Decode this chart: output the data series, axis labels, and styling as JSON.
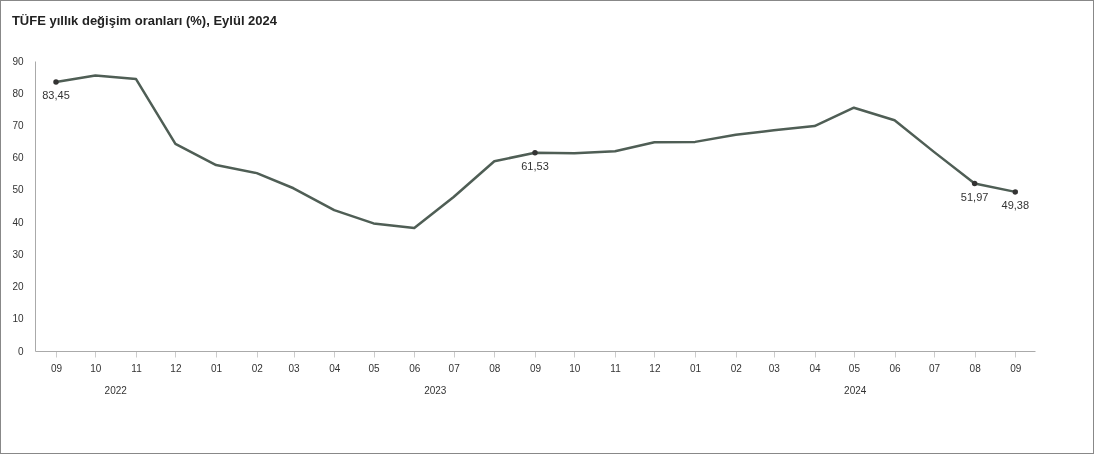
{
  "chart_data": {
    "type": "line",
    "title": "TÜFE yıllık değişim oranları (%), Eylül 2024",
    "x": [
      "2022-09",
      "2022-10",
      "2022-11",
      "2022-12",
      "2023-01",
      "2023-02",
      "2023-03",
      "2023-04",
      "2023-05",
      "2023-06",
      "2023-07",
      "2023-08",
      "2023-09",
      "2023-10",
      "2023-11",
      "2023-12",
      "2024-01",
      "2024-02",
      "2024-03",
      "2024-04",
      "2024-05",
      "2024-06",
      "2024-07",
      "2024-08",
      "2024-09"
    ],
    "series": [
      {
        "color": "#4f5e55",
        "values": [
          83.45,
          85.5,
          84.4,
          64.3,
          57.7,
          55.2,
          50.5,
          43.7,
          39.6,
          38.2,
          47.8,
          58.9,
          61.53,
          61.4,
          62,
          64.8,
          64.9,
          67.1,
          68.5,
          69.8,
          75.5,
          71.6,
          61.8,
          51.97,
          49.38
        ],
        "value_labels": [
          "83,45",
          null,
          null,
          null,
          null,
          null,
          null,
          null,
          null,
          null,
          null,
          null,
          "61,53",
          null,
          null,
          null,
          null,
          null,
          null,
          null,
          null,
          null,
          null,
          "51,97",
          "49,38"
        ]
      }
    ],
    "xlim": [
      "2022-08-16",
      "2024-09-16"
    ],
    "xticks": [
      {
        "value": "2022-09",
        "label": "09"
      },
      {
        "value": "2022-10",
        "label": "10"
      },
      {
        "value": "2022-11",
        "label": "11"
      },
      {
        "value": "2022-12",
        "label": "12"
      },
      {
        "value": "2023-01",
        "label": "01"
      },
      {
        "value": "2023-02",
        "label": "02"
      },
      {
        "value": "2023-03",
        "label": "03"
      },
      {
        "value": "2023-04",
        "label": "04"
      },
      {
        "value": "2023-05",
        "label": "05"
      },
      {
        "value": "2023-06",
        "label": "06"
      },
      {
        "value": "2023-07",
        "label": "07"
      },
      {
        "value": "2023-08",
        "label": "08"
      },
      {
        "value": "2023-09",
        "label": "09"
      },
      {
        "value": "2023-10",
        "label": "10"
      },
      {
        "value": "2023-11",
        "label": "11"
      },
      {
        "value": "2023-12",
        "label": "12"
      },
      {
        "value": "2024-01",
        "label": "01"
      },
      {
        "value": "2024-02",
        "label": "02"
      },
      {
        "value": "2024-03",
        "label": "03"
      },
      {
        "value": "2024-04",
        "label": "04"
      },
      {
        "value": "2024-05",
        "label": "05"
      },
      {
        "value": "2024-06",
        "label": "06"
      },
      {
        "value": "2024-07",
        "label": "07"
      },
      {
        "value": "2024-08",
        "label": "08"
      },
      {
        "value": "2024-09",
        "label": "09"
      }
    ],
    "annotations": [
      "2022",
      "2023",
      "2024"
    ],
    "ylim": [
      0,
      90
    ],
    "yticks": [
      0,
      10,
      20,
      30,
      40,
      50,
      60,
      70,
      80,
      90
    ],
    "grid": false
  }
}
